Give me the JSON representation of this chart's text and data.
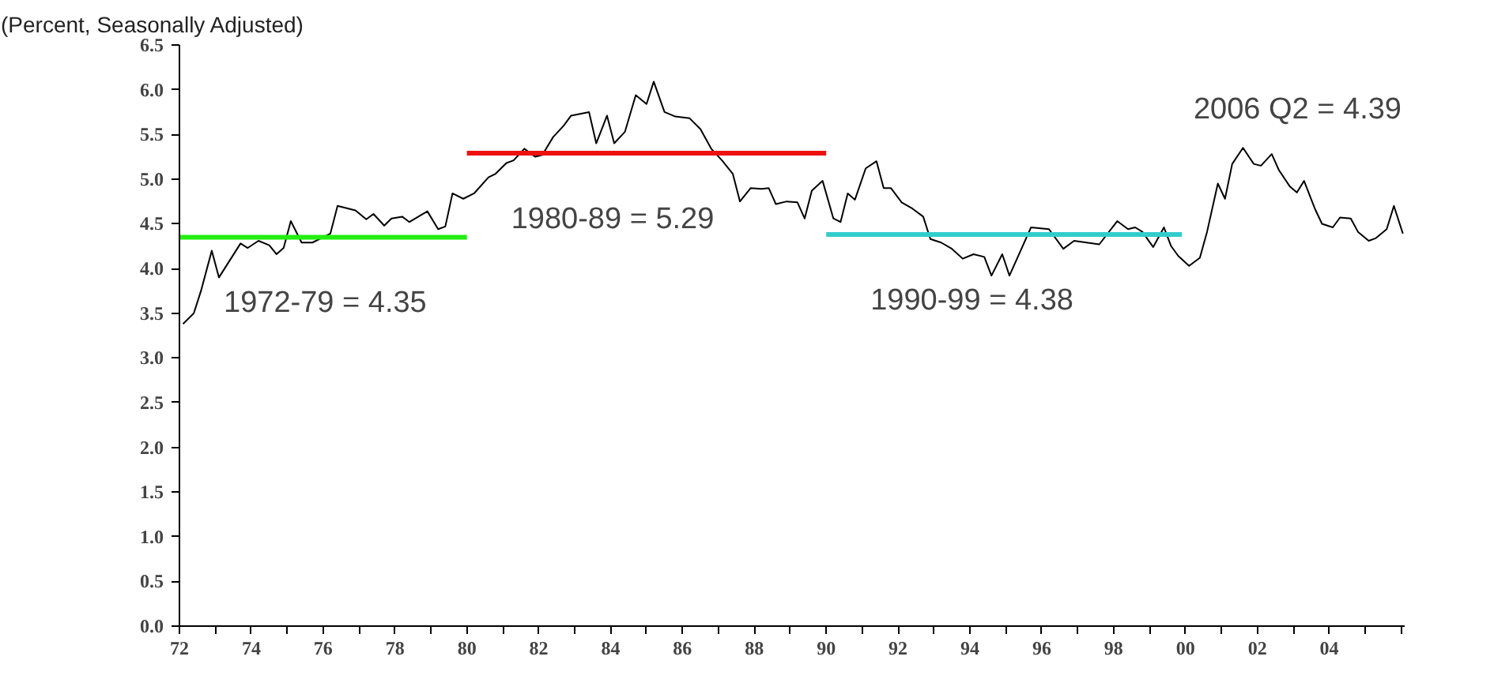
{
  "chart_data": {
    "type": "line",
    "title": "(Percent, Seasonally Adjusted)",
    "xlim": [
      1972,
      2006.1
    ],
    "xticks": [
      {
        "value": 1972,
        "label": "72"
      },
      {
        "value": 1973,
        "label": null
      },
      {
        "value": 1974,
        "label": "74"
      },
      {
        "value": 1975,
        "label": null
      },
      {
        "value": 1976,
        "label": "76"
      },
      {
        "value": 1977,
        "label": null
      },
      {
        "value": 1978,
        "label": "78"
      },
      {
        "value": 1979,
        "label": null
      },
      {
        "value": 1980,
        "label": "80"
      },
      {
        "value": 1981,
        "label": null
      },
      {
        "value": 1982,
        "label": "82"
      },
      {
        "value": 1983,
        "label": null
      },
      {
        "value": 1984,
        "label": "84"
      },
      {
        "value": 1985,
        "label": null
      },
      {
        "value": 1986,
        "label": "86"
      },
      {
        "value": 1987,
        "label": null
      },
      {
        "value": 1988,
        "label": "88"
      },
      {
        "value": 1989,
        "label": null
      },
      {
        "value": 1990,
        "label": "90"
      },
      {
        "value": 1991,
        "label": null
      },
      {
        "value": 1992,
        "label": "92"
      },
      {
        "value": 1993,
        "label": null
      },
      {
        "value": 1994,
        "label": "94"
      },
      {
        "value": 1995,
        "label": null
      },
      {
        "value": 1996,
        "label": "96"
      },
      {
        "value": 1997,
        "label": null
      },
      {
        "value": 1998,
        "label": "98"
      },
      {
        "value": 1999,
        "label": null
      },
      {
        "value": 2000,
        "label": "00"
      },
      {
        "value": 2001,
        "label": null
      },
      {
        "value": 2002,
        "label": "02"
      },
      {
        "value": 2003,
        "label": null
      },
      {
        "value": 2004,
        "label": "04"
      },
      {
        "value": 2005,
        "label": null
      },
      {
        "value": 2006,
        "label": null
      }
    ],
    "ylim": [
      0,
      6.5
    ],
    "yticks": [
      {
        "value": 0,
        "label": "0.0"
      },
      {
        "value": 0.5,
        "label": "0.5"
      },
      {
        "value": 1,
        "label": "1.0"
      },
      {
        "value": 1.5,
        "label": "1.5"
      },
      {
        "value": 2,
        "label": "2.0"
      },
      {
        "value": 2.5,
        "label": "2.5"
      },
      {
        "value": 3,
        "label": "3.0"
      },
      {
        "value": 3.5,
        "label": "3.5"
      },
      {
        "value": 4,
        "label": "4.0"
      },
      {
        "value": 4.5,
        "label": "4.5"
      },
      {
        "value": 5,
        "label": "5.0"
      },
      {
        "value": 5.5,
        "label": "5.5"
      },
      {
        "value": 6,
        "label": "6.0"
      },
      {
        "value": 6.5,
        "label": "6.5"
      }
    ],
    "grid": false,
    "marker": "none",
    "line_style": "solid",
    "series": [
      {
        "color": "#000000",
        "x": [
          1972.1,
          1972.4,
          1972.6,
          1972.9,
          1973.1,
          1973.7,
          1973.9,
          1974.2,
          1974.5,
          1974.7,
          1974.9,
          1975.1,
          1975.4,
          1975.7,
          1976.2,
          1976.4,
          1976.9,
          1977.2,
          1977.4,
          1977.7,
          1977.9,
          1978.2,
          1978.4,
          1978.9,
          1979.2,
          1979.4,
          1979.6,
          1979.9,
          1980.2,
          1980.6,
          1980.8,
          1981.1,
          1981.3,
          1981.6,
          1981.9,
          1982.1,
          1982.4,
          1982.7,
          1982.9,
          1983.4,
          1983.6,
          1983.9,
          1984.1,
          1984.4,
          1984.7,
          1985.0,
          1985.2,
          1985.5,
          1985.8,
          1986.2,
          1986.5,
          1986.8,
          1987.1,
          1987.4,
          1987.6,
          1987.9,
          1988.2,
          1988.4,
          1988.6,
          1988.9,
          1989.2,
          1989.4,
          1989.6,
          1989.9,
          1990.2,
          1990.4,
          1990.6,
          1990.8,
          1991.1,
          1991.4,
          1991.6,
          1991.8,
          1992.1,
          1992.4,
          1992.7,
          1992.9,
          1993.2,
          1993.5,
          1993.8,
          1994.1,
          1994.4,
          1994.6,
          1994.9,
          1995.1,
          1995.4,
          1995.7,
          1996.2,
          1996.6,
          1996.9,
          1997.6,
          1998.1,
          1998.4,
          1998.6,
          1998.8,
          1999.1,
          1999.4,
          1999.6,
          1999.8,
          2000.1,
          2000.4,
          2000.6,
          2000.9,
          2001.1,
          2001.3,
          2001.6,
          2001.9,
          2002.1,
          2002.4,
          2002.6,
          2002.9,
          2003.1,
          2003.3,
          2003.6,
          2003.8,
          2004.1,
          2004.3,
          2004.6,
          2004.8,
          2005.1,
          2005.3,
          2005.6,
          2005.8,
          2006.05
        ],
        "values": [
          3.38,
          3.5,
          3.75,
          4.2,
          3.9,
          4.28,
          4.23,
          4.31,
          4.26,
          4.16,
          4.23,
          4.53,
          4.29,
          4.29,
          4.39,
          4.7,
          4.65,
          4.55,
          4.61,
          4.48,
          4.56,
          4.58,
          4.52,
          4.64,
          4.44,
          4.47,
          4.84,
          4.78,
          4.84,
          5.02,
          5.06,
          5.18,
          5.21,
          5.34,
          5.25,
          5.27,
          5.47,
          5.6,
          5.71,
          5.75,
          5.4,
          5.71,
          5.4,
          5.53,
          5.94,
          5.84,
          6.09,
          5.75,
          5.7,
          5.68,
          5.56,
          5.34,
          5.21,
          5.06,
          4.75,
          4.9,
          4.89,
          4.9,
          4.72,
          4.75,
          4.74,
          4.56,
          4.87,
          4.98,
          4.56,
          4.52,
          4.84,
          4.77,
          5.12,
          5.2,
          4.9,
          4.9,
          4.74,
          4.67,
          4.58,
          4.33,
          4.29,
          4.22,
          4.11,
          4.16,
          4.13,
          3.92,
          4.16,
          3.92,
          4.19,
          4.46,
          4.44,
          4.22,
          4.31,
          4.27,
          4.53,
          4.44,
          4.46,
          4.41,
          4.24,
          4.46,
          4.25,
          4.14,
          4.03,
          4.12,
          4.41,
          4.95,
          4.78,
          5.17,
          5.35,
          5.17,
          5.15,
          5.28,
          5.1,
          4.92,
          4.85,
          4.98,
          4.67,
          4.5,
          4.46,
          4.57,
          4.56,
          4.41,
          4.31,
          4.34,
          4.44,
          4.7,
          4.39
        ]
      },
      {
        "name": "1972-79 = 4.35",
        "color": "#22ee11",
        "x": [
          1972,
          1980
        ],
        "values": [
          4.35,
          4.35
        ]
      },
      {
        "name": "1980-89 = 5.29",
        "color": "#ee1111",
        "x": [
          1980,
          1990
        ],
        "values": [
          5.29,
          5.29
        ]
      },
      {
        "name": "1990-99 =  4.38",
        "color": "#33cccc",
        "x": [
          1990,
          1999.9
        ],
        "values": [
          4.38,
          4.38
        ]
      }
    ],
    "annotations": [
      "2006 Q2 = 4.39"
    ]
  }
}
